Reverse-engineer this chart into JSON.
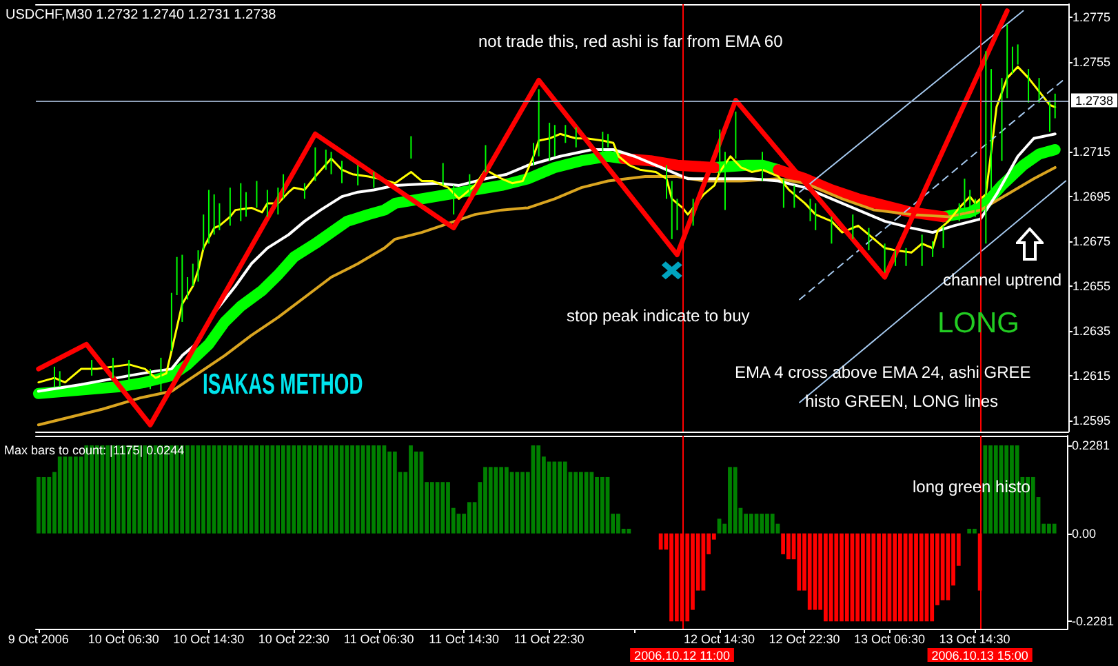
{
  "chart_data": [
    {
      "type": "line",
      "title": "USDCHF,M30 1.2732 1.2740 1.2731 1.2738",
      "annotations": [
        "not trade this, red ashi is far from EMA 60",
        "stop peak indicate to buy",
        "channel uptrend",
        "LONG",
        "EMA 4 cross above EMA 24, ashi GREE",
        "histo GREEN, LONG lines",
        "ISAKAS METHOD"
      ],
      "xlim": [
        "2006-10-09T22:15",
        "2006-10-13T23:15"
      ],
      "tick_labels": "y",
      "ylim": [
        1.259,
        1.2781
      ],
      "yticks": [
        1.2595,
        1.2615,
        1.2635,
        1.2655,
        1.2675,
        1.2695,
        1.2715,
        1.2755,
        1.2775
      ],
      "marker": "none",
      "ref_lines": [
        {
          "axis": "y",
          "value": 1.2738,
          "label": "1.2738",
          "color": "#8fa0b8"
        },
        {
          "axis": "x",
          "value": "2006-10-12T11:00",
          "color": "#ff0000"
        },
        {
          "axis": "x",
          "value": "2006-10-13T15:00",
          "color": "#ff0000"
        }
      ],
      "series": [
        {
          "type": "bar",
          "color": "#00ff00",
          "x": [
            "2006-10-10T00:00",
            "2006-10-10T00:30",
            "2006-10-10T03:30",
            "2006-10-10T05:30",
            "2006-10-10T07:00",
            "2006-10-10T09:00",
            "2006-10-10T10:00",
            "2006-10-10T11:00",
            "2006-10-10T11:30",
            "2006-10-10T12:00",
            "2006-10-10T12:30",
            "2006-10-10T13:00",
            "2006-10-10T13:30",
            "2006-10-10T14:00",
            "2006-10-10T14:30",
            "2006-10-10T15:00",
            "2006-10-10T15:30",
            "2006-10-10T16:30",
            "2006-10-10T17:30",
            "2006-10-10T18:00",
            "2006-10-10T19:00",
            "2006-10-10T20:00",
            "2006-10-10T21:00",
            "2006-10-10T21:30",
            "2006-10-10T23:30",
            "2006-10-11T00:30",
            "2006-10-11T01:30",
            "2006-10-11T02:00",
            "2006-10-11T03:00",
            "2006-10-11T04:30",
            "2006-10-11T06:00",
            "2006-10-11T09:30",
            "2006-10-11T12:30",
            "2006-10-11T13:30",
            "2006-10-11T15:00",
            "2006-10-11T16:30",
            "2006-10-11T17:30",
            "2006-10-11T21:00",
            "2006-10-11T21:30",
            "2006-10-11T22:30",
            "2006-10-11T23:00",
            "2006-10-12T00:00",
            "2006-10-12T01:00",
            "2006-10-12T03:30",
            "2006-10-12T04:00",
            "2006-10-12T09:30",
            "2006-10-12T10:00",
            "2006-10-12T10:30",
            "2006-10-12T12:00",
            "2006-10-12T14:30",
            "2006-10-12T15:00",
            "2006-10-12T16:00",
            "2006-10-12T18:30",
            "2006-10-12T20:30",
            "2006-10-12T21:30",
            "2006-10-12T23:00",
            "2006-10-12T23:30",
            "2006-10-13T01:00",
            "2006-10-13T03:00",
            "2006-10-13T04:30",
            "2006-10-13T06:00",
            "2006-10-13T07:00",
            "2006-10-13T08:00",
            "2006-10-13T09:30",
            "2006-10-13T10:30",
            "2006-10-13T11:30",
            "2006-10-13T13:00",
            "2006-10-13T13:30",
            "2006-10-13T14:00",
            "2006-10-13T14:30",
            "2006-10-13T15:30",
            "2006-10-13T16:00",
            "2006-10-13T17:00",
            "2006-10-13T17:30",
            "2006-10-13T18:00",
            "2006-10-13T18:30",
            "2006-10-13T19:30",
            "2006-10-13T20:30",
            "2006-10-13T21:30",
            "2006-10-13T22:00"
          ],
          "base": [
            1.261,
            1.261,
            1.2615,
            1.2614,
            1.2612,
            1.2609,
            1.2608,
            1.2626,
            1.2651,
            1.2639,
            1.2649,
            1.2655,
            1.2657,
            1.2671,
            1.2674,
            1.2678,
            1.268,
            1.2682,
            1.2684,
            1.2686,
            1.269,
            1.2686,
            1.2687,
            1.2694,
            1.2694,
            1.2702,
            1.2707,
            1.2705,
            1.2701,
            1.27,
            1.2699,
            1.2712,
            1.27,
            1.2687,
            1.2695,
            1.2706,
            null,
            1.2709,
            1.2713,
            1.2711,
            1.2713,
            1.2719,
            1.2717,
            1.2715,
            1.2717,
            1.2694,
            1.2676,
            1.268,
            1.2682,
            1.2705,
            1.2689,
            1.2712,
            1.2702,
            1.269,
            1.269,
            1.2684,
            1.268,
            1.2674,
            1.2676,
            1.2671,
            1.2661,
            1.2664,
            1.2664,
            1.2664,
            1.2668,
            1.2672,
            1.2684,
            1.2688,
            1.2689,
            1.2686,
            1.2674,
            1.2696,
            1.2711,
            1.2739,
            1.275,
            1.2754,
            1.2737,
            1.2737,
            1.2724,
            1.273
          ],
          "values": [
            0.0009,
            0.0007,
            0.0007,
            0.0009,
            0.001,
            0.0009,
            0.0015,
            0.0026,
            0.0017,
            0.003,
            0.001,
            0.001,
            0.0014,
            0.0016,
            0.0024,
            0.0018,
            0.0012,
            0.0017,
            0.0017,
            0.0011,
            0.0012,
            0.0012,
            0.0012,
            0.0011,
            0.0007,
            0.0015,
            0.0009,
            0.001,
            0.001,
            0.0009,
            0.0007,
            0.001,
            0.001,
            0.0013,
            0.001,
            0.0012,
            null,
            0.001,
            0.003,
            0.0017,
            0.0014,
            0.0008,
            0.0009,
            0.0009,
            0.0006,
            0.0015,
            0.0026,
            0.0014,
            0.0012,
            0.002,
            0.0026,
            0.0021,
            0.0013,
            0.0013,
            0.001,
            0.001,
            0.0012,
            0.0012,
            0.0011,
            0.001,
            0.0013,
            0.0007,
            0.0008,
            0.0014,
            0.0007,
            0.001,
            0.0008,
            0.0015,
            0.0009,
            0.0008,
            0.0086,
            0.0056,
            0.0037,
            0.0033,
            0.0012,
            0.0009,
            0.0015,
            0.0011,
            0.0014,
            0.0011
          ]
        },
        {
          "color": "#00ff00",
          "x": [
            "2006-10-09T22:30",
            "2006-10-10T01:00",
            "2006-10-10T03:30",
            "2006-10-10T06:00",
            "2006-10-10T08:30",
            "2006-10-10T11:00",
            "2006-10-10T12:30",
            "2006-10-10T14:30",
            "2006-10-10T16:00",
            "2006-10-10T17:30",
            "2006-10-10T19:30",
            "2006-10-10T21:00",
            "2006-10-10T22:30",
            "2006-10-11T00:30",
            "2006-10-11T02:00",
            "2006-10-11T03:30",
            "2006-10-11T05:30",
            "2006-10-11T07:00",
            "2006-10-11T08:00",
            "2006-10-11T10:30",
            "2006-10-11T13:00",
            "2006-10-11T15:30",
            "2006-10-11T18:00",
            "2006-10-11T20:30",
            "2006-10-11T23:00",
            "2006-10-12T01:30",
            "2006-10-12T04:00",
            "2006-10-12T05:30",
            "2006-10-12T09:30",
            "2006-10-12T14:00",
            "2006-10-12T17:00",
            "2006-10-12T18:30",
            "2006-10-12T20:00",
            "2006-10-13T04:00",
            "2006-10-13T11:30",
            "2006-10-13T14:00",
            "2006-10-13T15:30",
            "2006-10-13T17:00",
            "2006-10-13T19:00",
            "2006-10-13T20:30",
            "2006-10-13T22:00"
          ],
          "values": [
            1.2607,
            1.2608,
            1.2609,
            1.261,
            1.2612,
            1.2615,
            1.262,
            1.2629,
            1.2639,
            1.2646,
            1.2653,
            1.266,
            1.2668,
            1.2674,
            1.2679,
            1.2684,
            1.2687,
            1.2689,
            1.2692,
            1.2694,
            1.2696,
            1.2698,
            1.27,
            1.2703,
            1.2708,
            1.2711,
            1.2713,
            1.2712,
            null,
            1.2708,
            1.2709,
            1.2709,
            1.2707,
            null,
            1.2686,
            1.2688,
            1.2692,
            1.27,
            1.2709,
            1.2714,
            1.2716
          ]
        },
        {
          "color": "#ff0000",
          "x": [
            "2006-10-12T05:30",
            "2006-10-12T08:00",
            "2006-10-12T10:30",
            "2006-10-12T14:00",
            "2006-10-12T17:00",
            "2006-10-12T20:00",
            "2006-10-12T22:30",
            "2006-10-13T01:00",
            "2006-10-13T03:30",
            "2006-10-13T06:00",
            "2006-10-13T08:30",
            "2006-10-13T11:30"
          ],
          "values": [
            1.2712,
            1.2711,
            1.2709,
            1.2708,
            null,
            1.2707,
            1.2703,
            1.2698,
            1.2694,
            1.2691,
            1.2688,
            1.2686
          ]
        },
        {
          "color": "#daa520",
          "x": [
            "2006-10-09T22:30",
            "2006-10-10T04:30",
            "2006-10-10T08:00",
            "2006-10-10T11:00",
            "2006-10-10T13:30",
            "2006-10-10T16:00",
            "2006-10-10T18:30",
            "2006-10-10T21:00",
            "2006-10-10T23:30",
            "2006-10-11T02:00",
            "2006-10-11T04:30",
            "2006-10-11T07:00",
            "2006-10-11T08:00",
            "2006-10-11T10:30",
            "2006-10-11T13:00",
            "2006-10-11T15:30",
            "2006-10-11T18:00",
            "2006-10-11T20:30",
            "2006-10-11T23:00",
            "2006-10-12T01:30",
            "2006-10-12T04:00",
            "2006-10-12T07:30",
            "2006-10-12T10:30",
            "2006-10-12T13:00",
            "2006-10-12T16:30",
            "2006-10-12T20:00",
            "2006-10-12T22:30",
            "2006-10-13T02:00",
            "2006-10-13T05:00",
            "2006-10-13T08:30",
            "2006-10-13T12:00",
            "2006-10-13T15:00",
            "2006-10-13T17:30",
            "2006-10-13T20:00",
            "2006-10-13T22:00"
          ],
          "values": [
            1.2593,
            1.26,
            1.2605,
            1.2608,
            1.2616,
            1.2624,
            1.2633,
            1.2641,
            1.265,
            1.2659,
            1.2665,
            1.2672,
            1.2676,
            1.2679,
            1.2683,
            1.2687,
            1.2689,
            1.269,
            1.2694,
            1.2699,
            1.2702,
            1.2704,
            1.2704,
            1.2702,
            1.2702,
            1.2703,
            1.2701,
            1.2694,
            1.2689,
            1.2687,
            1.2686,
            1.2689,
            1.2696,
            1.2703,
            1.2708
          ]
        },
        {
          "color": "#ffffff",
          "x": [
            "2006-10-09T22:30",
            "2006-10-10T02:30",
            "2006-10-10T07:00",
            "2006-10-10T09:30",
            "2006-10-10T11:00",
            "2006-10-10T12:00",
            "2006-10-10T13:30",
            "2006-10-10T15:00",
            "2006-10-10T17:00",
            "2006-10-10T18:30",
            "2006-10-10T20:00",
            "2006-10-10T22:00",
            "2006-10-10T23:30",
            "2006-10-11T01:00",
            "2006-10-11T03:00",
            "2006-10-11T04:30",
            "2006-10-11T06:00",
            "2006-10-11T08:00",
            "2006-10-11T12:00",
            "2006-10-11T14:00",
            "2006-10-11T16:30",
            "2006-10-11T18:30",
            "2006-10-11T20:30",
            "2006-10-11T23:30",
            "2006-10-12T02:30",
            "2006-10-12T04:30",
            "2006-10-12T06:30",
            "2006-10-12T09:00",
            "2006-10-12T11:30",
            "2006-10-12T15:30",
            "2006-10-12T17:30",
            "2006-10-12T20:00",
            "2006-10-12T22:30",
            "2006-10-13T01:00",
            "2006-10-13T03:30",
            "2006-10-13T06:00",
            "2006-10-13T08:30",
            "2006-10-13T10:30",
            "2006-10-13T12:30",
            "2006-10-13T15:00",
            "2006-10-13T16:30",
            "2006-10-13T18:30",
            "2006-10-13T20:00",
            "2006-10-13T22:00"
          ],
          "values": [
            1.2608,
            1.2611,
            1.2615,
            1.2617,
            1.2618,
            1.2624,
            1.263,
            1.2643,
            1.2655,
            1.2665,
            1.2672,
            1.2678,
            1.2684,
            1.2689,
            1.2695,
            1.2697,
            1.2698,
            1.27,
            1.2701,
            1.27,
            1.2703,
            1.2705,
            1.2709,
            1.2713,
            1.2716,
            1.2716,
            1.2713,
            1.2708,
            1.2703,
            1.2703,
            1.2703,
            1.2702,
            1.2699,
            1.2694,
            1.2689,
            1.2684,
            1.2681,
            1.2679,
            1.2682,
            1.2685,
            1.2696,
            1.2713,
            1.2721,
            1.2723
          ]
        },
        {
          "color": "#ffff00",
          "x": [
            "2006-10-09T22:30",
            "2006-10-10T00:00",
            "2006-10-10T01:00",
            "2006-10-10T02:30",
            "2006-10-10T04:00",
            "2006-10-10T05:30",
            "2006-10-10T07:00",
            "2006-10-10T08:30",
            "2006-10-10T09:30",
            "2006-10-10T10:30",
            "2006-10-10T11:00",
            "2006-10-10T12:00",
            "2006-10-10T13:00",
            "2006-10-10T13:30",
            "2006-10-10T14:00",
            "2006-10-10T15:00",
            "2006-10-10T15:30",
            "2006-10-10T16:30",
            "2006-10-10T17:00",
            "2006-10-10T18:30",
            "2006-10-10T19:30",
            "2006-10-10T20:00",
            "2006-10-10T21:00",
            "2006-10-10T22:00",
            "2006-10-10T22:30",
            "2006-10-10T23:30",
            "2006-10-11T00:30",
            "2006-10-11T02:00",
            "2006-10-11T03:00",
            "2006-10-11T04:00",
            "2006-10-11T05:30",
            "2006-10-11T06:30",
            "2006-10-11T08:00",
            "2006-10-11T09:30",
            "2006-10-11T10:30",
            "2006-10-11T11:30",
            "2006-10-11T13:00",
            "2006-10-11T14:00",
            "2006-10-11T15:30",
            "2006-10-11T16:30",
            "2006-10-11T18:00",
            "2006-10-11T19:00",
            "2006-10-11T20:00",
            "2006-10-11T21:00",
            "2006-10-11T21:30",
            "2006-10-11T22:30",
            "2006-10-11T23:30",
            "2006-10-12T01:00",
            "2006-10-12T02:00",
            "2006-10-12T03:30",
            "2006-10-12T04:30",
            "2006-10-12T05:00",
            "2006-10-12T06:00",
            "2006-10-12T07:00",
            "2006-10-12T08:30",
            "2006-10-12T09:30",
            "2006-10-12T10:00",
            "2006-10-12T11:00",
            "2006-10-12T11:30",
            "2006-10-12T12:30",
            "2006-10-12T13:00",
            "2006-10-12T14:00",
            "2006-10-12T14:30",
            "2006-10-12T15:30",
            "2006-10-12T16:30",
            "2006-10-12T17:30",
            "2006-10-12T18:30",
            "2006-10-12T20:00",
            "2006-10-12T21:00",
            "2006-10-12T22:30",
            "2006-10-12T23:30",
            "2006-10-13T01:00",
            "2006-10-13T02:00",
            "2006-10-13T03:30",
            "2006-10-13T04:30",
            "2006-10-13T06:00",
            "2006-10-13T07:00",
            "2006-10-13T08:30",
            "2006-10-13T09:30",
            "2006-10-13T10:30",
            "2006-10-13T11:00",
            "2006-10-13T12:00",
            "2006-10-13T13:00",
            "2006-10-13T14:00",
            "2006-10-13T14:30",
            "2006-10-13T15:30",
            "2006-10-13T16:00",
            "2006-10-13T16:30",
            "2006-10-13T17:30",
            "2006-10-13T18:30",
            "2006-10-13T19:30",
            "2006-10-13T20:30",
            "2006-10-13T21:30",
            "2006-10-13T22:00"
          ],
          "values": [
            1.2612,
            1.2614,
            1.2612,
            1.2618,
            1.2618,
            1.2619,
            1.262,
            1.2618,
            1.2614,
            1.2616,
            1.2626,
            1.2647,
            1.2655,
            1.2662,
            1.2672,
            1.2681,
            1.2682,
            1.2686,
            1.2689,
            1.269,
            1.2688,
            1.2692,
            1.2692,
            1.2697,
            1.2699,
            1.2698,
            1.2704,
            1.2712,
            1.2707,
            1.2705,
            1.2704,
            1.2703,
            1.2701,
            1.2706,
            1.2702,
            1.2702,
            1.2699,
            1.2694,
            1.27,
            1.2707,
            1.2703,
            1.2701,
            1.2702,
            1.2713,
            1.272,
            1.2721,
            1.2723,
            1.2721,
            1.2721,
            1.272,
            1.2719,
            1.2713,
            1.2709,
            1.2707,
            1.2706,
            1.2703,
            1.2694,
            1.269,
            1.2687,
            1.2693,
            1.2696,
            1.27,
            1.2706,
            1.2713,
            1.2708,
            1.2706,
            1.2707,
            1.2704,
            1.2698,
            1.2692,
            1.2687,
            1.2684,
            1.2679,
            1.2682,
            1.2678,
            1.2672,
            1.2671,
            1.267,
            1.2674,
            1.2672,
            1.268,
            1.2684,
            1.269,
            1.2695,
            1.2692,
            1.2696,
            1.2715,
            1.2735,
            1.2748,
            1.2753,
            1.2748,
            1.2742,
            1.2736,
            1.2735
          ]
        },
        {
          "color": "#ff0000",
          "x": [
            "2006-10-09T22:30",
            "2006-10-10T03:00",
            "2006-10-10T09:00",
            "2006-10-11T00:30",
            "2006-10-11T13:30",
            "2006-10-11T21:30",
            "2006-10-12T10:30",
            "2006-10-12T16:00",
            "2006-10-13T06:00",
            "2006-10-13T17:30"
          ],
          "values": [
            1.2618,
            1.2629,
            1.2593,
            1.2723,
            1.2681,
            1.2747,
            1.2669,
            1.2738,
            1.2659,
            1.2778
          ]
        },
        {
          "color": "#a6caf0",
          "x": [
            "2006-10-12T22:00",
            "2006-10-13T19:00"
          ],
          "values": [
            1.2697,
            1.2778
          ]
        },
        {
          "color": "#a6caf0",
          "x": [
            "2006-10-12T22:00",
            "2006-10-13T23:00"
          ],
          "values": [
            1.2603,
            1.2702
          ]
        },
        {
          "color": "#a6caf0",
          "line_style": "dashed",
          "x": [
            "2006-10-12T22:00",
            "2006-10-13T23:00"
          ],
          "values": [
            1.2649,
            1.2748
          ]
        },
        {
          "type": "scatter",
          "color": "#00ccee",
          "marker": "cross",
          "x": [
            "2006-10-12T10:00"
          ],
          "values": [
            1.2662
          ]
        }
      ]
    },
    {
      "type": "bar",
      "title": "Max bars to count: |1175| 0.0244",
      "annotations": [
        "long green histo"
      ],
      "xlim": [
        "2006-10-09T22:15",
        "2006-10-13T23:15"
      ],
      "xticks": [
        {
          "value": "2006-10-09T22:30",
          "label": "9 Oct 2006"
        },
        {
          "value": "2006-10-10T06:30",
          "label": "10 Oct 06:30"
        },
        {
          "value": "2006-10-10T14:30",
          "label": "10 Oct 14:30"
        },
        {
          "value": "2006-10-10T22:30",
          "label": "10 Oct 22:30"
        },
        {
          "value": "2006-10-11T06:30",
          "label": "11 Oct 06:30"
        },
        {
          "value": "2006-10-11T14:30",
          "label": "11 Oct 14:30"
        },
        {
          "value": "2006-10-11T22:30",
          "label": "11 Oct 22:30"
        },
        {
          "value": "2006-10-12T06:30",
          "label": null
        },
        {
          "value": "2006-10-12T14:30",
          "label": "12 Oct 14:30"
        },
        {
          "value": "2006-10-12T22:30",
          "label": "12 Oct 22:30"
        },
        {
          "value": "2006-10-13T06:30",
          "label": "13 Oct 06:30"
        },
        {
          "value": "2006-10-13T14:30",
          "label": "13 Oct 14:30"
        }
      ],
      "ylim": [
        -0.247,
        0.253
      ],
      "yticks": [
        0.2281,
        {
          "value": 0,
          "label": "0.00"
        },
        -0.2281
      ],
      "ref_lines": [
        {
          "axis": "x",
          "value": "2006-10-12T11:00",
          "label": "2006.10.12 11:00",
          "color": "#ff0000"
        },
        {
          "axis": "x",
          "value": "2006-10-13T15:00",
          "label": "2006.10.13 15:00",
          "color": "#ff0000"
        }
      ],
      "x": [
        "2006-10-09T22:30",
        "2006-10-09T23:00",
        "2006-10-09T23:30",
        "2006-10-10T00:00",
        "2006-10-10T00:30",
        "2006-10-10T01:00",
        "2006-10-10T01:30",
        "2006-10-10T02:00",
        "2006-10-10T02:30",
        "2006-10-10T03:00",
        "2006-10-10T03:30",
        "2006-10-10T04:00",
        "2006-10-10T04:30",
        "2006-10-10T05:00",
        "2006-10-10T05:30",
        "2006-10-10T06:00",
        "2006-10-10T06:30",
        "2006-10-10T07:00",
        "2006-10-10T07:30",
        "2006-10-10T08:00",
        "2006-10-10T08:30",
        "2006-10-10T09:00",
        "2006-10-10T09:30",
        "2006-10-10T10:00",
        "2006-10-10T10:30",
        "2006-10-10T11:00",
        "2006-10-10T11:30",
        "2006-10-10T12:00",
        "2006-10-10T12:30",
        "2006-10-10T13:00",
        "2006-10-10T13:30",
        "2006-10-10T14:00",
        "2006-10-10T14:30",
        "2006-10-10T15:00",
        "2006-10-10T15:30",
        "2006-10-10T16:00",
        "2006-10-10T16:30",
        "2006-10-10T17:00",
        "2006-10-10T17:30",
        "2006-10-10T18:00",
        "2006-10-10T18:30",
        "2006-10-10T19:00",
        "2006-10-10T19:30",
        "2006-10-10T20:00",
        "2006-10-10T20:30",
        "2006-10-10T21:00",
        "2006-10-10T21:30",
        "2006-10-10T22:00",
        "2006-10-10T22:30",
        "2006-10-10T23:00",
        "2006-10-10T23:30",
        "2006-10-11T00:00",
        "2006-10-11T00:30",
        "2006-10-11T01:00",
        "2006-10-11T01:30",
        "2006-10-11T02:00",
        "2006-10-11T02:30",
        "2006-10-11T03:00",
        "2006-10-11T03:30",
        "2006-10-11T04:00",
        "2006-10-11T04:30",
        "2006-10-11T05:00",
        "2006-10-11T05:30",
        "2006-10-11T06:00",
        "2006-10-11T06:30",
        "2006-10-11T07:00",
        "2006-10-11T07:30",
        "2006-10-11T08:00",
        "2006-10-11T08:30",
        "2006-10-11T09:00",
        "2006-10-11T09:30",
        "2006-10-11T10:00",
        "2006-10-11T10:30",
        "2006-10-11T11:00",
        "2006-10-11T11:30",
        "2006-10-11T12:00",
        "2006-10-11T12:30",
        "2006-10-11T13:00",
        "2006-10-11T13:30",
        "2006-10-11T14:00",
        "2006-10-11T14:30",
        "2006-10-11T15:00",
        "2006-10-11T15:30",
        "2006-10-11T16:00",
        "2006-10-11T16:30",
        "2006-10-11T17:00",
        "2006-10-11T17:30",
        "2006-10-11T18:00",
        "2006-10-11T18:30",
        "2006-10-11T19:00",
        "2006-10-11T19:30",
        "2006-10-11T20:00",
        "2006-10-11T20:30",
        "2006-10-11T21:00",
        "2006-10-11T21:30",
        "2006-10-11T22:00",
        "2006-10-11T22:30",
        "2006-10-11T23:00",
        "2006-10-11T23:30",
        "2006-10-12T00:00",
        "2006-10-12T00:30",
        "2006-10-12T01:00",
        "2006-10-12T01:30",
        "2006-10-12T02:00",
        "2006-10-12T02:30",
        "2006-10-12T03:00",
        "2006-10-12T03:30",
        "2006-10-12T04:00",
        "2006-10-12T04:30",
        "2006-10-12T05:00",
        "2006-10-12T05:30",
        "2006-10-12T06:00",
        "2006-10-12T06:30",
        "2006-10-12T07:00",
        "2006-10-12T07:30",
        "2006-10-12T08:00",
        "2006-10-12T08:30",
        "2006-10-12T09:00",
        "2006-10-12T09:30",
        "2006-10-12T10:00",
        "2006-10-12T10:30",
        "2006-10-12T11:00",
        "2006-10-12T11:30",
        "2006-10-12T12:00",
        "2006-10-12T12:30",
        "2006-10-12T13:00",
        "2006-10-12T13:30",
        "2006-10-12T14:00",
        "2006-10-12T14:30",
        "2006-10-12T15:00",
        "2006-10-12T15:30",
        "2006-10-12T16:00",
        "2006-10-12T16:30",
        "2006-10-12T17:00",
        "2006-10-12T17:30",
        "2006-10-12T18:00",
        "2006-10-12T18:30",
        "2006-10-12T19:00",
        "2006-10-12T19:30",
        "2006-10-12T20:00",
        "2006-10-12T20:30",
        "2006-10-12T21:00",
        "2006-10-12T21:30",
        "2006-10-12T22:00",
        "2006-10-12T22:30",
        "2006-10-12T23:00",
        "2006-10-12T23:30",
        "2006-10-13T00:00",
        "2006-10-13T00:30",
        "2006-10-13T01:00",
        "2006-10-13T01:30",
        "2006-10-13T02:00",
        "2006-10-13T02:30",
        "2006-10-13T03:00",
        "2006-10-13T03:30",
        "2006-10-13T04:00",
        "2006-10-13T04:30",
        "2006-10-13T05:00",
        "2006-10-13T05:30",
        "2006-10-13T06:00",
        "2006-10-13T06:30",
        "2006-10-13T07:00",
        "2006-10-13T07:30",
        "2006-10-13T08:00",
        "2006-10-13T08:30",
        "2006-10-13T09:00",
        "2006-10-13T09:30",
        "2006-10-13T10:00",
        "2006-10-13T10:30",
        "2006-10-13T11:00",
        "2006-10-13T11:30",
        "2006-10-13T12:00",
        "2006-10-13T12:30",
        "2006-10-13T13:00",
        "2006-10-13T13:30",
        "2006-10-13T14:00",
        "2006-10-13T14:30",
        "2006-10-13T15:00",
        "2006-10-13T15:30",
        "2006-10-13T16:00",
        "2006-10-13T16:30",
        "2006-10-13T17:00",
        "2006-10-13T17:30",
        "2006-10-13T18:00",
        "2006-10-13T18:30",
        "2006-10-13T19:00",
        "2006-10-13T19:30",
        "2006-10-13T20:00",
        "2006-10-13T20:30",
        "2006-10-13T21:00",
        "2006-10-13T21:30",
        "2006-10-13T22:00"
      ],
      "values": [
        0.146,
        0.146,
        0.146,
        0.159,
        0.199,
        0.199,
        0.199,
        0.199,
        0.199,
        0.228,
        0.228,
        0.228,
        0.228,
        0.228,
        0.228,
        0.228,
        0.228,
        0.228,
        0.228,
        0.228,
        0.228,
        0.228,
        0.228,
        0.228,
        0.228,
        0.228,
        0.228,
        0.228,
        0.228,
        0.228,
        0.228,
        0.228,
        0.228,
        0.228,
        0.228,
        0.228,
        0.228,
        0.228,
        0.228,
        0.228,
        0.228,
        0.228,
        0.228,
        0.228,
        0.228,
        0.228,
        0.228,
        0.228,
        0.228,
        0.228,
        0.228,
        0.228,
        0.228,
        0.228,
        0.228,
        0.228,
        0.228,
        0.228,
        0.228,
        0.228,
        0.228,
        0.228,
        0.228,
        0.228,
        0.228,
        0.228,
        0.212,
        0.212,
        0.159,
        0.159,
        0.228,
        0.212,
        0.212,
        0.133,
        0.133,
        0.133,
        0.133,
        0.133,
        0.066,
        0.051,
        0.051,
        0.081,
        0.081,
        0.133,
        0.172,
        0.172,
        0.172,
        0.172,
        0.172,
        0.159,
        0.159,
        0.159,
        0.159,
        0.228,
        0.228,
        0.199,
        0.186,
        0.186,
        0.186,
        0.186,
        0.159,
        0.159,
        0.159,
        0.159,
        0.159,
        0.146,
        0.146,
        0.146,
        0.051,
        0.051,
        0.012,
        0.012,
        null,
        null,
        null,
        null,
        null,
        -0.042,
        -0.042,
        -0.228,
        -0.228,
        -0.228,
        -0.228,
        -0.198,
        -0.148,
        -0.148,
        -0.054,
        -0.016,
        0.038,
        0.025,
        0.172,
        0.172,
        0.066,
        0.051,
        0.051,
        0.051,
        0.051,
        0.051,
        0.051,
        0.025,
        -0.054,
        -0.067,
        -0.067,
        -0.148,
        -0.148,
        -0.198,
        -0.198,
        -0.198,
        -0.228,
        -0.228,
        -0.228,
        -0.228,
        -0.228,
        -0.228,
        -0.228,
        -0.228,
        -0.228,
        -0.228,
        -0.228,
        -0.228,
        -0.228,
        -0.228,
        -0.228,
        -0.228,
        -0.228,
        -0.228,
        -0.228,
        -0.228,
        -0.228,
        -0.186,
        -0.173,
        -0.173,
        -0.135,
        -0.084,
        null,
        0.012,
        0.012,
        -0.148,
        0.228,
        0.228,
        0.228,
        0.228,
        0.228,
        0.228,
        0.228,
        0.146,
        0.146,
        0.146,
        0.094,
        0.025,
        0.025,
        0.025
      ],
      "colors": [
        "#008000",
        "#008000",
        "#008000",
        "#008000",
        "#008000",
        "#008000",
        "#008000",
        "#008000",
        "#008000",
        "#008000",
        "#008000",
        "#008000",
        "#008000",
        "#008000",
        "#008000",
        "#008000",
        "#008000",
        "#008000",
        "#008000",
        "#008000",
        "#008000",
        "#008000",
        "#008000",
        "#008000",
        "#008000",
        "#008000",
        "#008000",
        "#008000",
        "#008000",
        "#008000",
        "#008000",
        "#008000",
        "#008000",
        "#008000",
        "#008000",
        "#008000",
        "#008000",
        "#008000",
        "#008000",
        "#008000",
        "#008000",
        "#008000",
        "#008000",
        "#008000",
        "#008000",
        "#008000",
        "#008000",
        "#008000",
        "#008000",
        "#008000",
        "#008000",
        "#008000",
        "#008000",
        "#008000",
        "#008000",
        "#008000",
        "#008000",
        "#008000",
        "#008000",
        "#008000",
        "#008000",
        "#008000",
        "#008000",
        "#008000",
        "#008000",
        "#008000",
        "#008000",
        "#008000",
        "#008000",
        "#008000",
        "#008000",
        "#008000",
        "#008000",
        "#008000",
        "#008000",
        "#008000",
        "#008000",
        "#008000",
        "#008000",
        "#008000",
        "#008000",
        "#008000",
        "#008000",
        "#008000",
        "#008000",
        "#008000",
        "#008000",
        "#008000",
        "#008000",
        "#008000",
        "#008000",
        "#008000",
        "#008000",
        "#008000",
        "#008000",
        "#008000",
        "#008000",
        "#008000",
        "#008000",
        "#008000",
        "#008000",
        "#008000",
        "#008000",
        "#008000",
        "#008000",
        "#008000",
        "#008000",
        "#008000",
        "#008000",
        "#008000",
        "#008000",
        "#008000",
        null,
        null,
        null,
        null,
        null,
        "#ff0000",
        "#ff0000",
        "#ff0000",
        "#ff0000",
        "#ff0000",
        "#ff0000",
        "#ff0000",
        "#ff0000",
        "#ff0000",
        "#ff0000",
        "#ff0000",
        "#008000",
        "#008000",
        "#008000",
        "#008000",
        "#008000",
        "#008000",
        "#008000",
        "#008000",
        "#008000",
        "#008000",
        "#008000",
        "#008000",
        "#ff0000",
        "#ff0000",
        "#ff0000",
        "#ff0000",
        "#ff0000",
        "#ff0000",
        "#ff0000",
        "#ff0000",
        "#ff0000",
        "#ff0000",
        "#ff0000",
        "#ff0000",
        "#ff0000",
        "#ff0000",
        "#ff0000",
        "#ff0000",
        "#ff0000",
        "#ff0000",
        "#ff0000",
        "#ff0000",
        "#ff0000",
        "#ff0000",
        "#ff0000",
        "#ff0000",
        "#ff0000",
        "#ff0000",
        "#ff0000",
        "#ff0000",
        "#ff0000",
        "#ff0000",
        "#ff0000",
        "#ff0000",
        "#ff0000",
        "#ff0000",
        null,
        "#008000",
        "#008000",
        "#ff0000",
        "#008000",
        "#008000",
        "#008000",
        "#008000",
        "#008000",
        "#008000",
        "#008000",
        "#008000",
        "#008000",
        "#008000",
        "#008000",
        "#008000",
        "#008000",
        "#008000"
      ]
    }
  ]
}
